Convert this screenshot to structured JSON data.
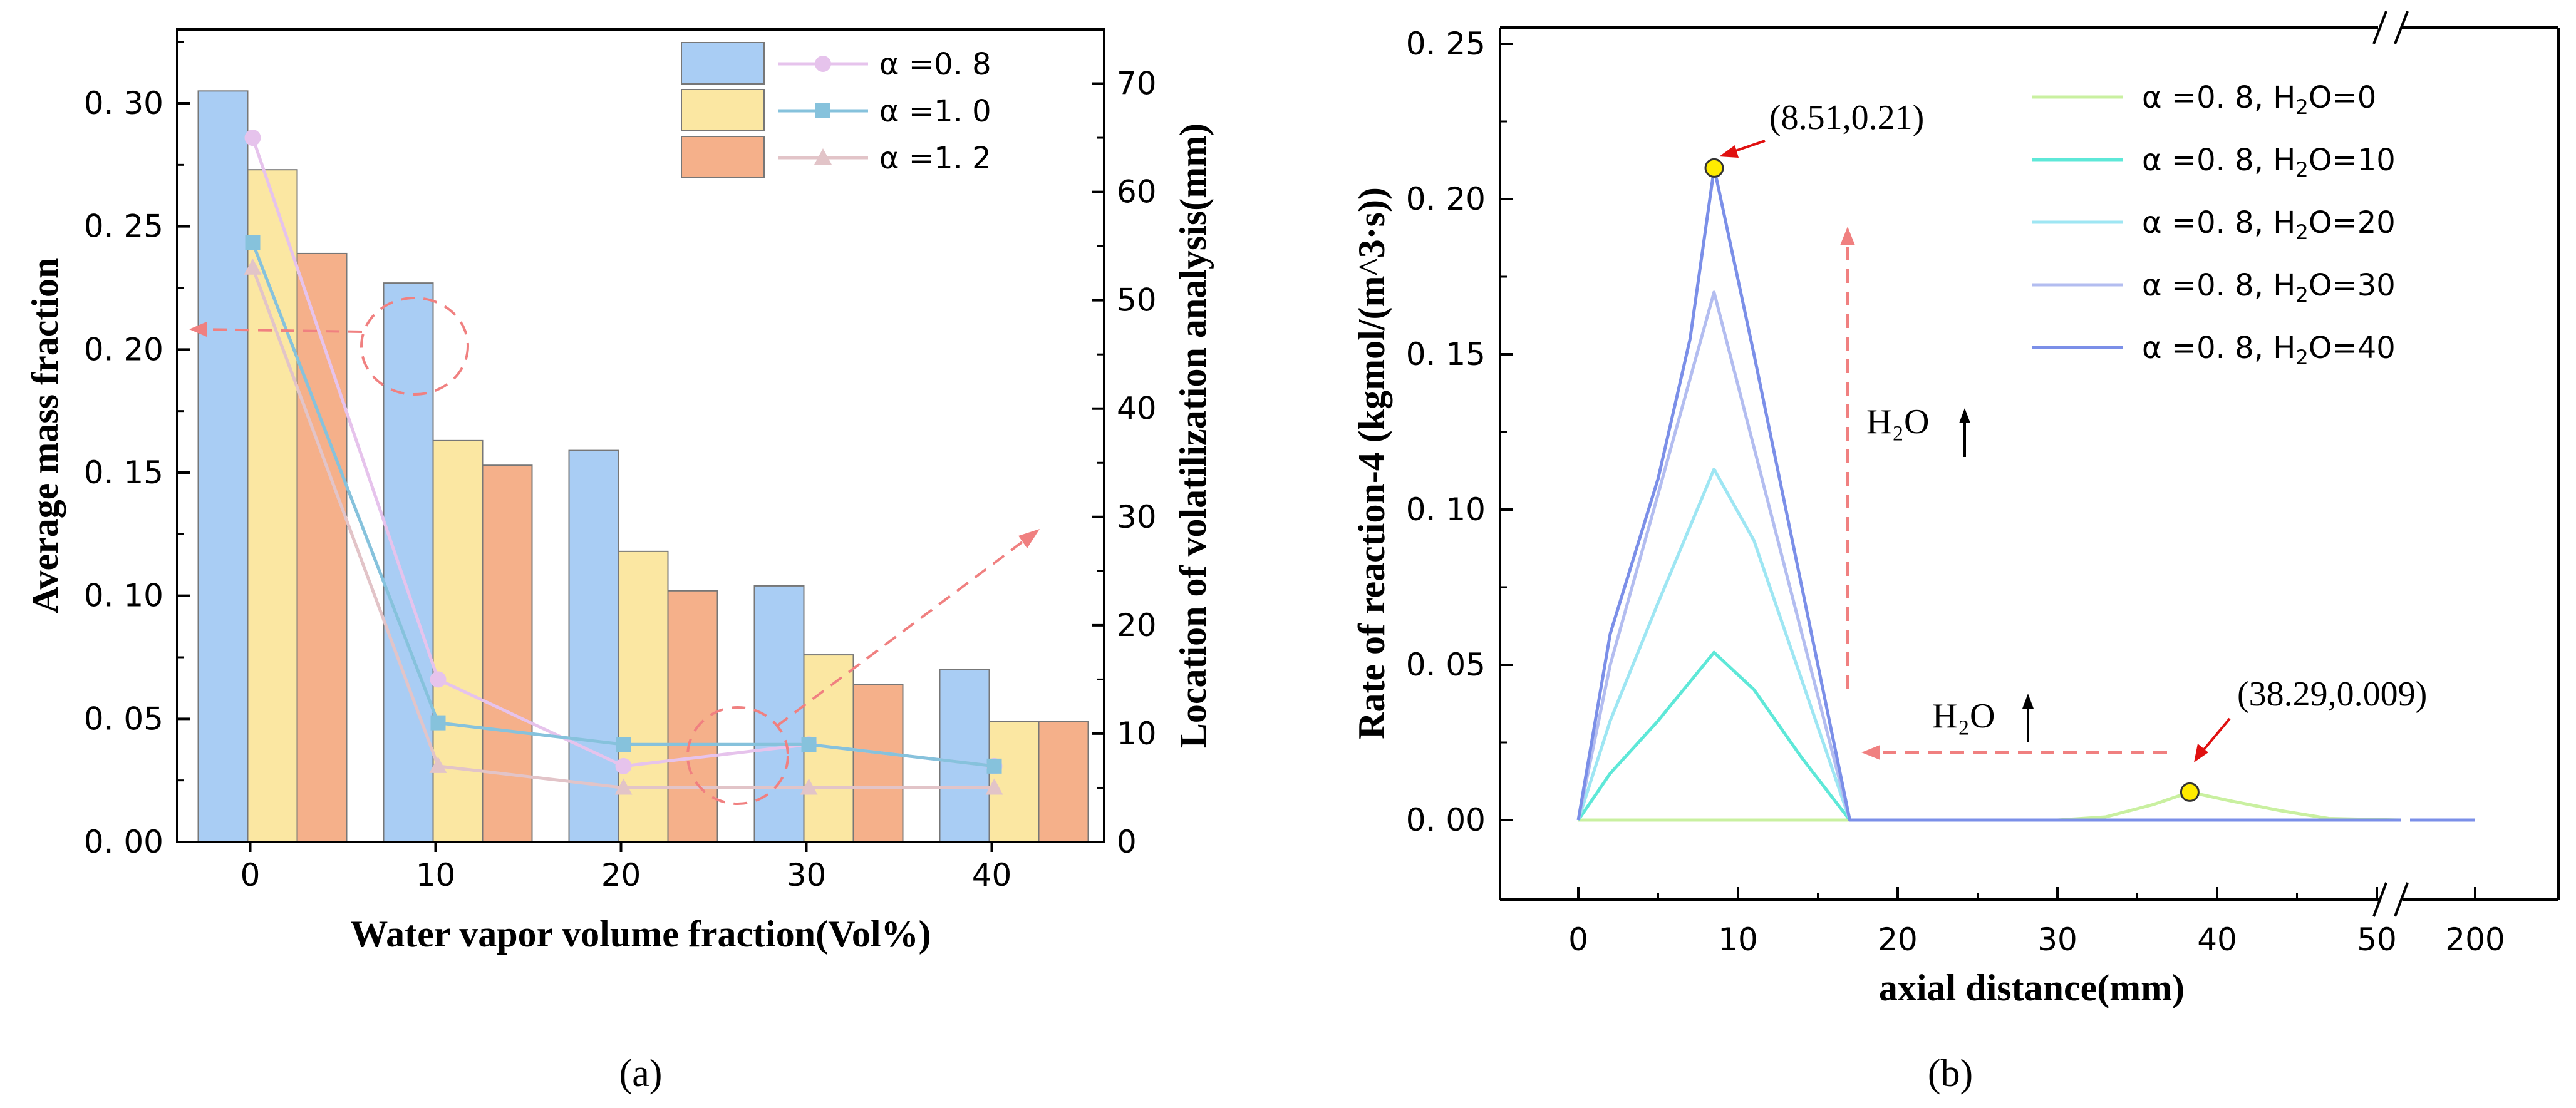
{
  "colors": {
    "bar_0_8": "#a9cdf4",
    "bar_1_0": "#fbe7a2",
    "bar_1_2": "#f5b08a",
    "line_0_8": "#e6c3ec",
    "line_1_0": "#86c2dc",
    "line_1_2": "#e2c4c8",
    "annotation": "#f08080",
    "h2o_0": "#c9f0a0",
    "h2o_10": "#5ee8d8",
    "h2o_20": "#9ee6f3",
    "h2o_30": "#b3bdf0",
    "h2o_40": "#7b8fe8",
    "marker": "#ffeb00"
  },
  "chart_data": [
    {
      "type": "bar",
      "panel_label": "(a)",
      "xlabel": "Water vapor volume fraction(Vol%)",
      "ylabel": "Average mass fraction",
      "y2label": "Location of volatilization analysis(mm)",
      "categories": [
        "0",
        "10",
        "20",
        "30",
        "40"
      ],
      "ylim": [
        0,
        0.33
      ],
      "yticks": [
        "0.00",
        "0.05",
        "0.10",
        "0.15",
        "0.20",
        "0.25",
        "0.30"
      ],
      "y2lim": [
        0,
        75
      ],
      "y2ticks": [
        "0",
        "10",
        "20",
        "30",
        "40",
        "50",
        "60",
        "70"
      ],
      "series": [
        {
          "name": "α=0.8",
          "values": [
            0.305,
            0.227,
            0.159,
            0.104,
            0.07
          ]
        },
        {
          "name": "α=1.0",
          "values": [
            0.273,
            0.163,
            0.118,
            0.076,
            0.049
          ]
        },
        {
          "name": "α=1.2",
          "values": [
            0.239,
            0.153,
            0.102,
            0.064,
            0.049
          ]
        }
      ],
      "lines": [
        {
          "name": "α=0.8",
          "marker": "circle",
          "values": [
            65,
            15,
            7,
            9,
            7
          ]
        },
        {
          "name": "α=1.0",
          "marker": "square",
          "values": [
            55.3,
            11,
            9,
            9,
            7
          ]
        },
        {
          "name": "α=1.2",
          "marker": "triangle",
          "values": [
            53,
            7,
            5,
            5,
            5
          ]
        }
      ],
      "legend": [
        "α =0. 8",
        "α =1. 0",
        "α =1. 2"
      ]
    },
    {
      "type": "line",
      "panel_label": "(b)",
      "xlabel": "axial distance(mm)",
      "ylabel": "Rate of reaction-4 (kgmol/(m^3·s))",
      "xticks": [
        "0",
        "10",
        "20",
        "30",
        "40",
        "50",
        "200"
      ],
      "ylim": [
        -0.025,
        0.25
      ],
      "yticks": [
        "0.00",
        "0.05",
        "0.10",
        "0.15",
        "0.20",
        "0.25"
      ],
      "axis_break": "between 50 and 200",
      "series": [
        {
          "name": "α =0. 8, H₂O=0",
          "x": [
            0,
            8.5,
            17,
            30,
            33,
            36,
            38.29,
            41,
            44,
            47,
            52,
            200
          ],
          "y": [
            0,
            0,
            0,
            0,
            0.001,
            0.005,
            0.009,
            0.006,
            0.003,
            0.0005,
            0,
            0
          ]
        },
        {
          "name": "α =0. 8, H₂O=10",
          "x": [
            0,
            2,
            5,
            8.5,
            11,
            14,
            17,
            52,
            200
          ],
          "y": [
            0,
            0.015,
            0.032,
            0.054,
            0.042,
            0.02,
            0,
            0,
            0
          ]
        },
        {
          "name": "α =0. 8, H₂O=20",
          "x": [
            0,
            2,
            5,
            8.5,
            11,
            14,
            17,
            52,
            200
          ],
          "y": [
            0,
            0.032,
            0.07,
            0.113,
            0.09,
            0.045,
            0,
            0,
            0
          ]
        },
        {
          "name": "α =0. 8, H₂O=30",
          "x": [
            0,
            2,
            5,
            8.5,
            11,
            14,
            17,
            52,
            200
          ],
          "y": [
            0,
            0.05,
            0.105,
            0.17,
            0.12,
            0.06,
            0,
            0,
            0
          ]
        },
        {
          "name": "α =0. 8, H₂O=40",
          "x": [
            0,
            2,
            5,
            7,
            8.51,
            11,
            14,
            17,
            52,
            200
          ],
          "y": [
            0,
            0.06,
            0.11,
            0.155,
            0.21,
            0.15,
            0.075,
            0,
            0,
            0
          ]
        }
      ],
      "annotations": [
        "(8.51,0.21)",
        "(38.29,0.009)",
        "H₂O",
        "H₂O"
      ]
    }
  ]
}
